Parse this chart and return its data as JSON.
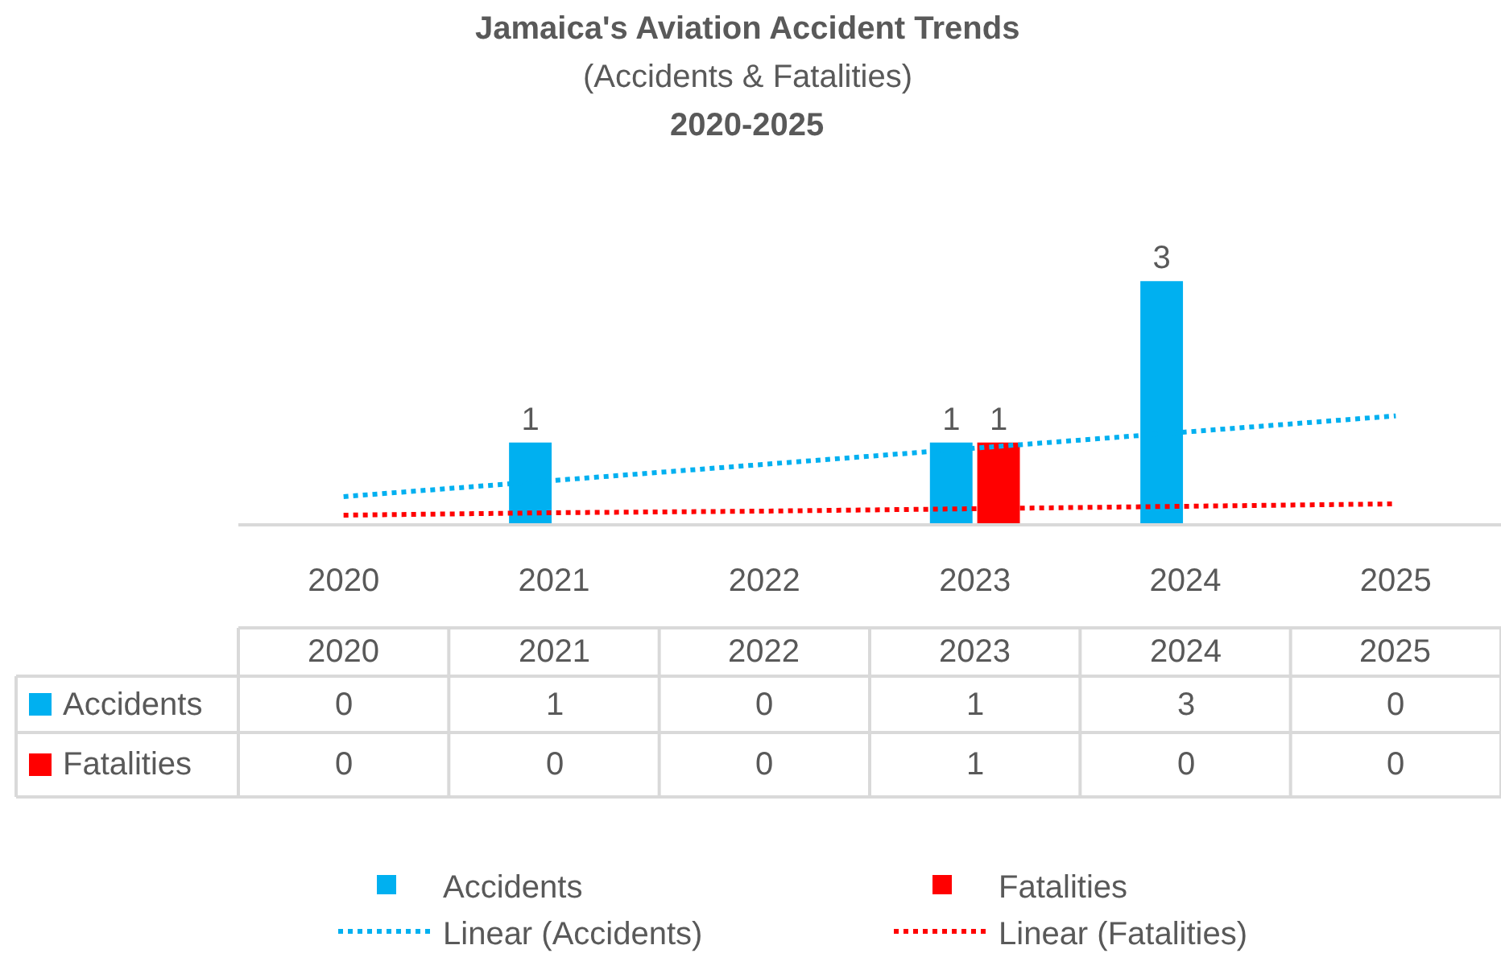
{
  "chart_data": {
    "type": "bar",
    "title": "Jamaica's Aviation Accident Trends",
    "subtitle": "(Accidents & Fatalities)",
    "annotations": [
      "2020-2025"
    ],
    "categories": [
      "2020",
      "2021",
      "2022",
      "2023",
      "2024",
      "2025"
    ],
    "series": [
      {
        "name": "Accidents",
        "color": "#00b0f0",
        "values": [
          0,
          1,
          0,
          1,
          3,
          0
        ],
        "value_labels": [
          "0",
          "1",
          "0",
          "1",
          "3",
          "0"
        ]
      },
      {
        "name": "Fatalities",
        "color": "#ff0000",
        "values": [
          0,
          0,
          0,
          1,
          0,
          0
        ],
        "value_labels": [
          "0",
          "0",
          "0",
          "1",
          "0",
          "0"
        ]
      },
      {
        "name": "Linear (Accidents)",
        "type": "line",
        "color": "#00b0f0",
        "line_style": "dotted",
        "values": [
          0.33,
          0.53,
          0.73,
          0.93,
          1.13,
          1.33
        ]
      },
      {
        "name": "Linear (Fatalities)",
        "type": "line",
        "color": "#ff0000",
        "line_style": "dotted",
        "values": [
          0.1,
          0.13,
          0.15,
          0.18,
          0.21,
          0.24
        ]
      }
    ],
    "legend": "bottom"
  }
}
